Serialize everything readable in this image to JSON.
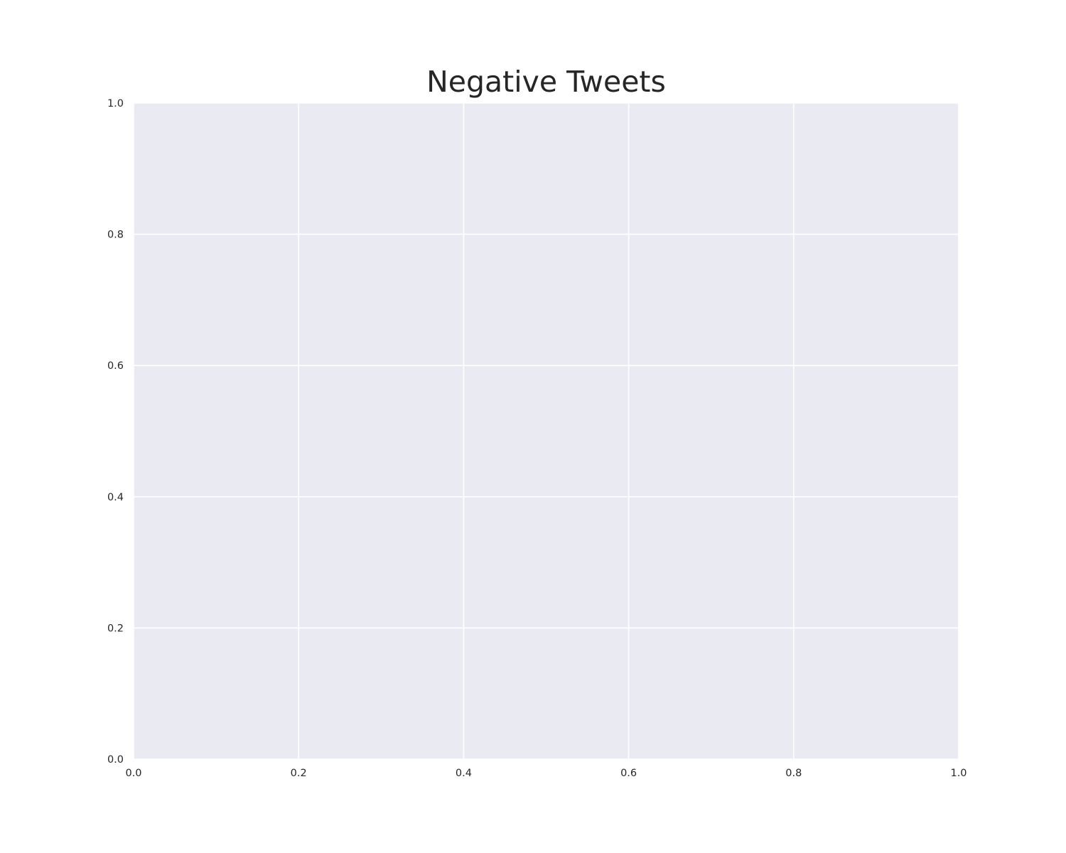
{
  "chart_data": {
    "type": "line",
    "title": "Negative Tweets",
    "xlabel": "",
    "ylabel": "",
    "xlim": [
      0.0,
      1.0
    ],
    "ylim": [
      0.0,
      1.0
    ],
    "x_ticks": [
      "0.0",
      "0.2",
      "0.4",
      "0.6",
      "0.8",
      "1.0"
    ],
    "y_ticks": [
      "0.0",
      "0.2",
      "0.4",
      "0.6",
      "0.8",
      "1.0"
    ],
    "grid": true,
    "series": []
  },
  "colors": {
    "plot_background": "#eaeaf2",
    "grid_line": "#ffffff",
    "text": "#262626",
    "figure_background": "#ffffff"
  }
}
